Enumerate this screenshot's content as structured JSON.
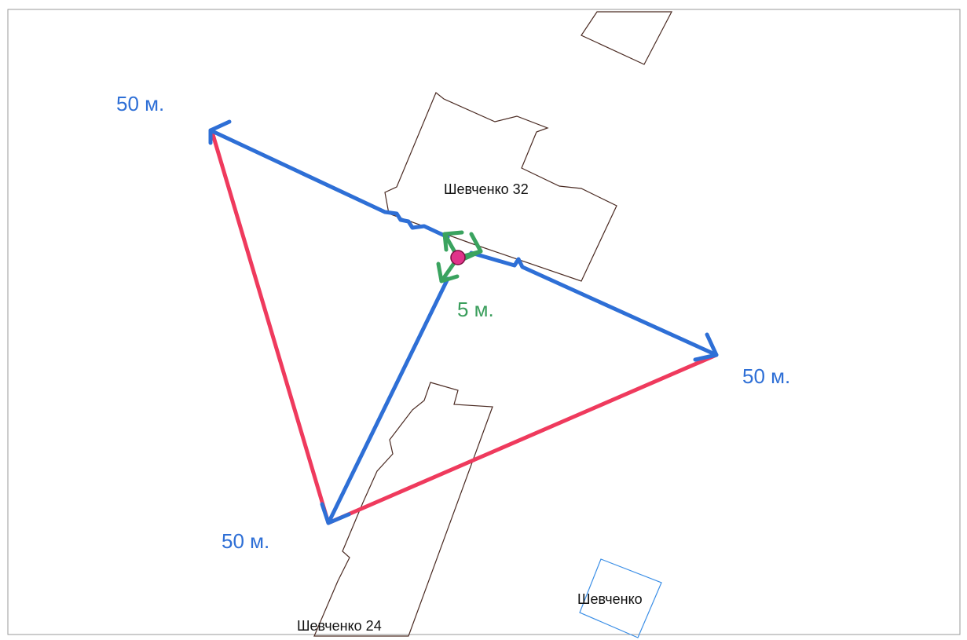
{
  "labels": {
    "top_left": "50 м.",
    "right": "50 м.",
    "bottom": "50 м.",
    "center": "5 м."
  },
  "buildings": {
    "north": "Шевченко 32",
    "south": "Шевченко 24",
    "east": "Шевченко"
  }
}
